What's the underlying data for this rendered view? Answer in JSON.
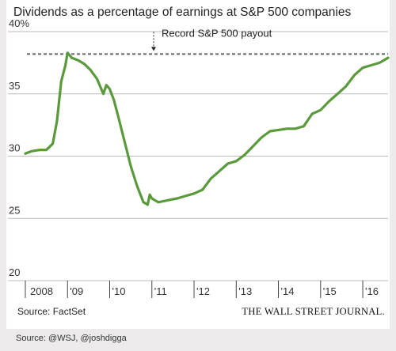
{
  "chart_data": {
    "type": "line",
    "title": "Dividends as a percentage of earnings at S&P 500 companies",
    "ylim": [
      20,
      40
    ],
    "yticks": [
      {
        "value": 20,
        "label": "20"
      },
      {
        "value": 25,
        "label": "25"
      },
      {
        "value": 30,
        "label": "30"
      },
      {
        "value": 35,
        "label": "35"
      },
      {
        "value": 40,
        "label": "40%"
      }
    ],
    "xlim": [
      2008.0,
      2016.6
    ],
    "xticks": [
      {
        "value": 2008.0,
        "label": "2008"
      },
      {
        "value": 2009.0,
        "label": "'09"
      },
      {
        "value": 2010.0,
        "label": "'10"
      },
      {
        "value": 2011.0,
        "label": "'11"
      },
      {
        "value": 2012.0,
        "label": "'12"
      },
      {
        "value": 2013.0,
        "label": "'13"
      },
      {
        "value": 2014.0,
        "label": "'14"
      },
      {
        "value": 2015.0,
        "label": "'15"
      },
      {
        "value": 2016.0,
        "label": "'16"
      }
    ],
    "reference_line": {
      "value": 38.2,
      "label": "Record S&P 500 payout"
    },
    "series": [
      {
        "color": "#5a9a3c",
        "x": [
          2008.0,
          2008.15,
          2008.35,
          2008.5,
          2008.65,
          2008.75,
          2008.85,
          2008.95,
          2009.0,
          2009.1,
          2009.25,
          2009.4,
          2009.55,
          2009.7,
          2009.85,
          2009.92,
          2010.0,
          2010.1,
          2010.2,
          2010.35,
          2010.5,
          2010.65,
          2010.8,
          2010.9,
          2010.95,
          2011.0,
          2011.05,
          2011.15,
          2011.3,
          2011.45,
          2011.6,
          2011.8,
          2012.0,
          2012.2,
          2012.4,
          2012.6,
          2012.8,
          2013.0,
          2013.2,
          2013.4,
          2013.6,
          2013.8,
          2014.0,
          2014.2,
          2014.4,
          2014.6,
          2014.8,
          2015.0,
          2015.2,
          2015.4,
          2015.6,
          2015.8,
          2016.0,
          2016.2,
          2016.4,
          2016.6
        ],
        "values": [
          30.2,
          30.4,
          30.5,
          30.5,
          31.0,
          32.8,
          36.0,
          37.3,
          38.3,
          37.9,
          37.7,
          37.4,
          36.9,
          36.2,
          35.0,
          35.7,
          35.4,
          34.5,
          33.2,
          31.2,
          29.2,
          27.6,
          26.3,
          26.1,
          26.9,
          26.6,
          26.5,
          26.3,
          26.4,
          26.5,
          26.6,
          26.8,
          27.0,
          27.3,
          28.2,
          28.8,
          29.4,
          29.6,
          30.1,
          30.8,
          31.5,
          32.0,
          32.1,
          32.2,
          32.2,
          32.4,
          33.4,
          33.7,
          34.4,
          35.0,
          35.6,
          36.5,
          37.1,
          37.3,
          37.5,
          37.9
        ]
      }
    ],
    "source": "Source: FactSet",
    "publisher": "THE WALL STREET JOURNAL."
  },
  "footer": {
    "credit": "Source: @WSJ, @joshdigga"
  },
  "colors": {
    "line": "#5a9a3c",
    "reference": "#666666",
    "grid": "#bbbbbb",
    "background": "#eceaea"
  }
}
